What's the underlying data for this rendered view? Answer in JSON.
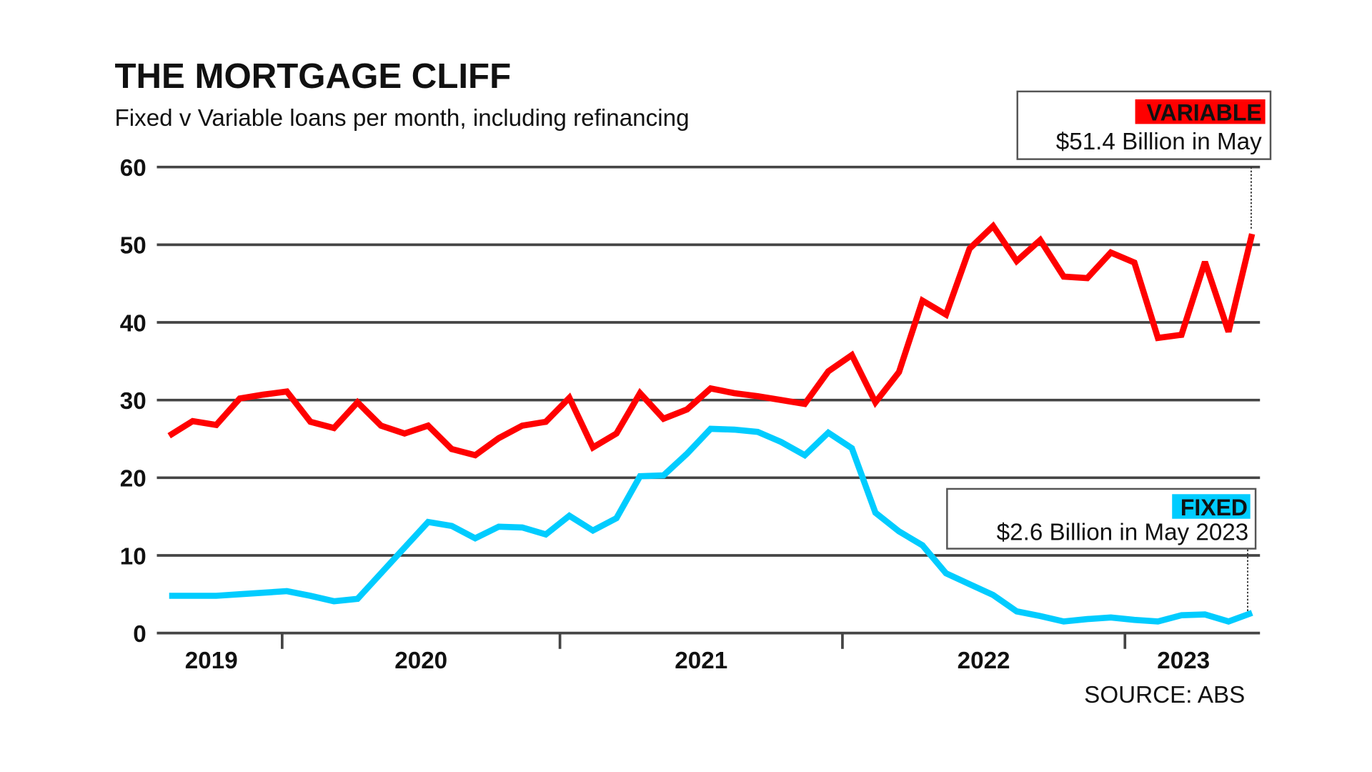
{
  "chart_data": {
    "type": "line",
    "title": "THE MORTGAGE CLIFF",
    "subtitle": "Fixed v Variable loans per month, including refinancing",
    "source": "SOURCE: ABS",
    "ylim": [
      0,
      60
    ],
    "yticks": [
      0,
      10,
      20,
      30,
      40,
      50,
      60
    ],
    "grid": true,
    "x_start": "2019-07",
    "x_end": "2023-05",
    "year_labels": [
      "2019",
      "2020",
      "2021",
      "2022",
      "2023"
    ],
    "series": [
      {
        "name": "VARIABLE",
        "color": "#ff0000",
        "values": [
          25.4,
          27.3,
          26.8,
          30.2,
          30.7,
          31.1,
          27.2,
          26.4,
          29.7,
          26.7,
          25.7,
          26.7,
          23.7,
          22.9,
          25.1,
          26.7,
          27.2,
          30.3,
          23.9,
          25.7,
          30.9,
          27.6,
          28.8,
          31.5,
          30.9,
          30.5,
          30.0,
          29.5,
          33.7,
          35.8,
          29.7,
          33.6,
          42.8,
          41.0,
          49.5,
          52.4,
          47.9,
          50.6,
          45.9,
          45.7,
          49.0,
          47.7,
          38.0,
          38.4,
          47.8,
          38.8,
          51.4
        ]
      },
      {
        "name": "FIXED",
        "color": "#00ccff",
        "values": [
          4.8,
          4.8,
          4.8,
          5.0,
          5.2,
          5.4,
          4.8,
          4.1,
          4.4,
          7.7,
          11.0,
          14.3,
          13.8,
          12.2,
          13.7,
          13.6,
          12.7,
          15.1,
          13.2,
          14.8,
          20.2,
          20.3,
          23.1,
          26.3,
          26.2,
          25.9,
          24.6,
          22.9,
          25.8,
          23.8,
          15.5,
          13.1,
          11.3,
          7.7,
          6.3,
          4.9,
          2.8,
          2.2,
          1.5,
          1.8,
          2.0,
          1.7,
          1.5,
          2.3,
          2.4,
          1.5,
          2.6
        ]
      }
    ],
    "annotations": [
      {
        "series": "VARIABLE",
        "label": "VARIABLE",
        "text": "$51.4 Billion in May"
      },
      {
        "series": "FIXED",
        "label": "FIXED",
        "text": "$2.6 Billion in May 2023"
      }
    ]
  }
}
